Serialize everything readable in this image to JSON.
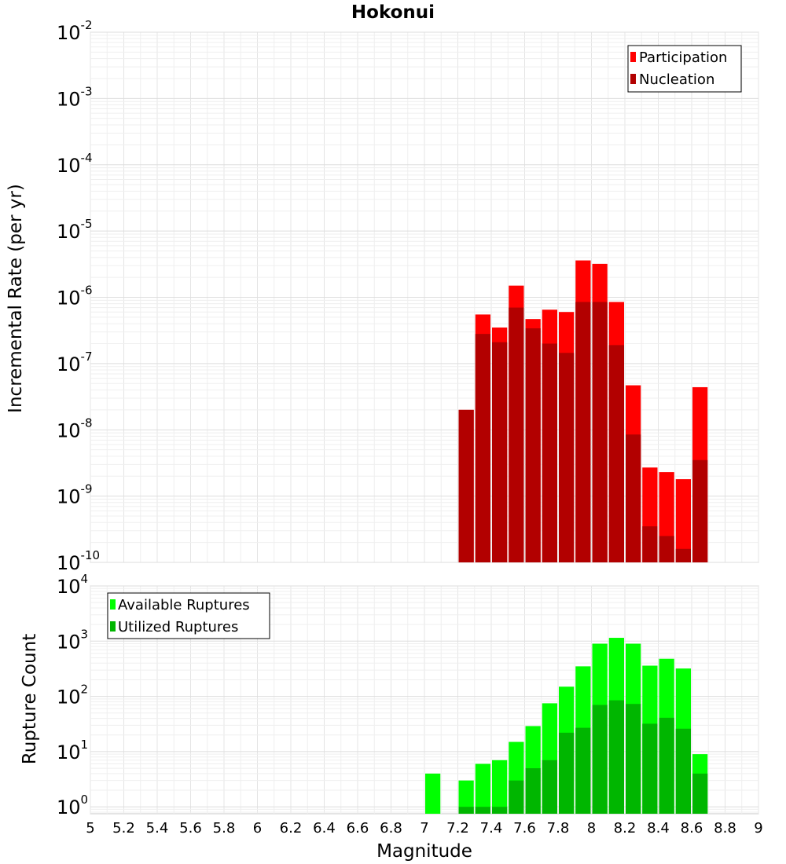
{
  "chart_data": [
    {
      "type": "bar",
      "title": "Hokonui",
      "xlabel": "",
      "ylabel": "Incremental Rate (per yr)",
      "yscale": "log",
      "ylim": [
        1e-10,
        0.01
      ],
      "y_ticks": [
        {
          "base": "10",
          "exp": "-10"
        },
        {
          "base": "10",
          "exp": "-9"
        },
        {
          "base": "10",
          "exp": "-8"
        },
        {
          "base": "10",
          "exp": "-7"
        },
        {
          "base": "10",
          "exp": "-6"
        },
        {
          "base": "10",
          "exp": "-5"
        },
        {
          "base": "10",
          "exp": "-4"
        },
        {
          "base": "10",
          "exp": "-3"
        },
        {
          "base": "10",
          "exp": "-2"
        }
      ],
      "xlim": [
        5,
        9
      ],
      "grid": true,
      "legend_position": "top-right",
      "bin_width": 0.1,
      "x": [
        7.25,
        7.35,
        7.45,
        7.55,
        7.65,
        7.75,
        7.85,
        7.95,
        8.05,
        8.15,
        8.25,
        8.35,
        8.45,
        8.55,
        8.65
      ],
      "series": [
        {
          "name": "Participation",
          "color": "#ff0000",
          "values": [
            2e-08,
            5.5e-07,
            3.5e-07,
            1.5e-06,
            4.7e-07,
            6.5e-07,
            6e-07,
            3.6e-06,
            3.2e-06,
            8.5e-07,
            4.7e-08,
            2.7e-09,
            2.3e-09,
            1.8e-09,
            4.4e-08
          ]
        },
        {
          "name": "Nucleation",
          "color": "#b20000",
          "values": [
            2e-08,
            2.8e-07,
            2.1e-07,
            7e-07,
            3.4e-07,
            2e-07,
            1.45e-07,
            8.5e-07,
            8.5e-07,
            1.9e-07,
            8.5e-09,
            3.5e-10,
            2.5e-10,
            1.6e-10,
            3.5e-09
          ]
        }
      ]
    },
    {
      "type": "bar",
      "xlabel": "Magnitude",
      "ylabel": "Rupture Count",
      "yscale": "log",
      "ylim": [
        0.75,
        10000
      ],
      "y_ticks": [
        {
          "base": "10",
          "exp": "0"
        },
        {
          "base": "10",
          "exp": "1"
        },
        {
          "base": "10",
          "exp": "2"
        },
        {
          "base": "10",
          "exp": "3"
        },
        {
          "base": "10",
          "exp": "4"
        }
      ],
      "xlim": [
        5,
        9
      ],
      "x_ticks": [
        "5",
        "5.2",
        "5.4",
        "5.6",
        "5.8",
        "6",
        "6.2",
        "6.4",
        "6.6",
        "6.8",
        "7",
        "7.2",
        "7.4",
        "7.6",
        "7.8",
        "8",
        "8.2",
        "8.4",
        "8.6",
        "8.8",
        "9"
      ],
      "grid": true,
      "legend_position": "top-left",
      "bin_width": 0.1,
      "x": [
        7.05,
        7.25,
        7.35,
        7.45,
        7.55,
        7.65,
        7.75,
        7.85,
        7.95,
        8.05,
        8.15,
        8.25,
        8.35,
        8.45,
        8.55,
        8.65
      ],
      "series": [
        {
          "name": "Available Ruptures",
          "color": "#00ff00",
          "values": [
            4,
            3,
            6,
            7,
            15,
            29,
            75,
            150,
            350,
            900,
            1150,
            900,
            360,
            480,
            320,
            9
          ]
        },
        {
          "name": "Utilized Ruptures",
          "color": "#00b600",
          "values": [
            0,
            1,
            1,
            1,
            3,
            5,
            7,
            22,
            27,
            70,
            85,
            73,
            32,
            41,
            26,
            4
          ]
        }
      ]
    }
  ]
}
